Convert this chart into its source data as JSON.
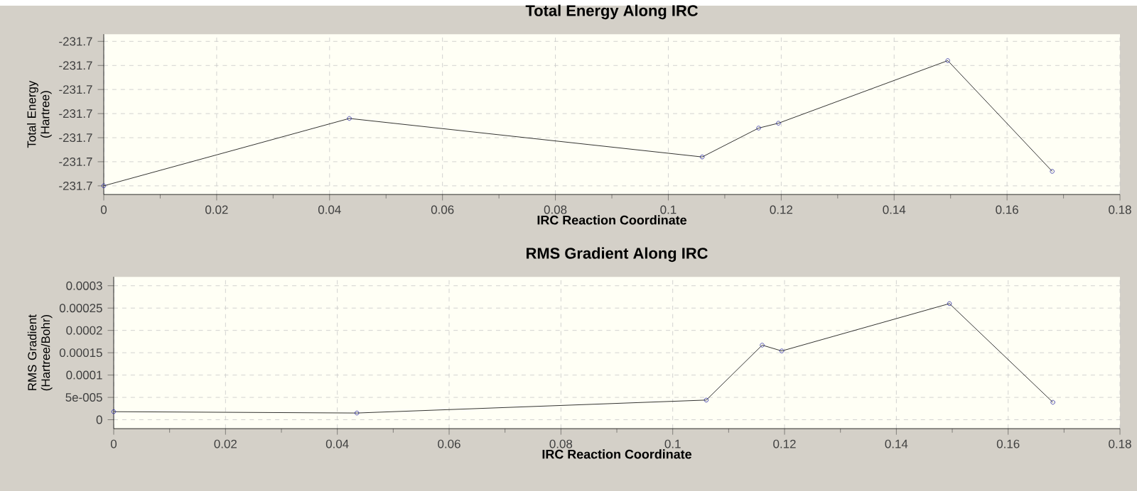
{
  "chart_data": [
    {
      "type": "line",
      "title": "Total Energy Along IRC",
      "xlabel": "IRC Reaction Coordinate",
      "ylabel": "Total Energy (Hartree)",
      "grid": true,
      "marker": "circle",
      "line_style": "solid",
      "xlim": [
        0,
        0.18
      ],
      "xticks": [
        0,
        0.02,
        0.04,
        0.06,
        0.08,
        0.1,
        0.12,
        0.14,
        0.16,
        0.18
      ],
      "ylim": [
        -231.70168,
        -231.69835
      ],
      "yticks": [
        {
          "value": -231.7015,
          "label": "-231.7"
        },
        {
          "value": -231.701,
          "label": "-231.7"
        },
        {
          "value": -231.7005,
          "label": "-231.7"
        },
        {
          "value": -231.7,
          "label": "-231.7"
        },
        {
          "value": -231.6995,
          "label": "-231.7"
        },
        {
          "value": -231.699,
          "label": "-231.7"
        },
        {
          "value": -231.6985,
          "label": "-231.7"
        }
      ],
      "x": [
        0,
        0.0435,
        0.106,
        0.116,
        0.1195,
        0.1495,
        0.168
      ],
      "series": [
        {
          "color": "#000000",
          "values": [
            -231.7015,
            -231.7001,
            -231.7009,
            -231.7003,
            -231.7002,
            -231.6989,
            -231.7012
          ]
        }
      ]
    },
    {
      "type": "line",
      "title": "RMS Gradient Along IRC",
      "xlabel": "IRC Reaction Coordinate",
      "ylabel": "RMS Gradient (Hartree/Bohr)",
      "grid": true,
      "marker": "circle",
      "line_style": "solid",
      "xlim": [
        0,
        0.18
      ],
      "xticks": [
        0,
        0.02,
        0.04,
        0.06,
        0.08,
        0.1,
        0.12,
        0.14,
        0.16,
        0.18
      ],
      "ylim": [
        -2e-05,
        0.00032
      ],
      "yticks": [
        0,
        {
          "value": 5e-05,
          "label": "5e-005"
        },
        0.0001,
        0.00015,
        0.0002,
        0.00025,
        0.0003
      ],
      "x": [
        0,
        0.0435,
        0.106,
        0.116,
        0.1195,
        0.1495,
        0.168
      ],
      "series": [
        {
          "color": "#000000",
          "values": [
            1.8e-05,
            1.5e-05,
            4.4e-05,
            0.000167,
            0.000154,
            0.00026,
            3.9e-05
          ]
        }
      ]
    }
  ]
}
